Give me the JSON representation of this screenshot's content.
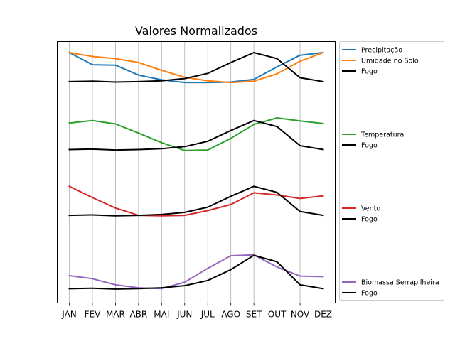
{
  "chart_data": {
    "type": "line",
    "title": "Valores Normalizados",
    "xlabel": "",
    "ylabel": "",
    "categories": [
      "JAN",
      "FEV",
      "MAR",
      "ABR",
      "MAI",
      "JUN",
      "JUL",
      "AGO",
      "SET",
      "OUT",
      "NOV",
      "DEZ"
    ],
    "grid": "vertical",
    "y_ticks_visible": false,
    "ylim": [
      0,
      1
    ],
    "panels": [
      {
        "ylim": [
          0,
          1
        ],
        "series": [
          {
            "name": "Precipitação",
            "color": "#1f77b4",
            "values": [
              1.0,
              0.72,
              0.71,
              0.48,
              0.37,
              0.31,
              0.31,
              0.32,
              0.38,
              0.67,
              0.94,
              1.0
            ]
          },
          {
            "name": "Umidade no Solo",
            "color": "#ff7f0e",
            "values": [
              1.0,
              0.91,
              0.86,
              0.77,
              0.59,
              0.43,
              0.35,
              0.31,
              0.34,
              0.51,
              0.8,
              1.0
            ]
          },
          {
            "name": "Fogo",
            "color": "#000000",
            "values": [
              0.33,
              0.34,
              0.32,
              0.33,
              0.35,
              0.4,
              0.52,
              0.77,
              1.0,
              0.86,
              0.42,
              0.33
            ]
          }
        ]
      },
      {
        "ylim": [
          0,
          1
        ],
        "series": [
          {
            "name": "Temperatura",
            "color": "#2ca02c",
            "values": [
              0.88,
              0.94,
              0.86,
              0.65,
              0.43,
              0.25,
              0.26,
              0.53,
              0.85,
              1.0,
              0.93,
              0.87
            ]
          },
          {
            "name": "Fogo",
            "color": "#000000",
            "values": [
              0.27,
              0.28,
              0.26,
              0.27,
              0.29,
              0.34,
              0.46,
              0.71,
              0.94,
              0.8,
              0.36,
              0.27
            ]
          }
        ]
      },
      {
        "ylim": [
          0,
          1
        ],
        "series": [
          {
            "name": "Vento",
            "color": "#d62728",
            "values": [
              0.93,
              0.67,
              0.43,
              0.26,
              0.25,
              0.26,
              0.37,
              0.51,
              0.78,
              0.73,
              0.65,
              0.71
            ]
          },
          {
            "name": "Fogo",
            "color": "#000000",
            "values": [
              0.26,
              0.27,
              0.25,
              0.26,
              0.28,
              0.33,
              0.45,
              0.7,
              0.93,
              0.79,
              0.35,
              0.26
            ]
          }
        ]
      },
      {
        "ylim": [
          0,
          1
        ],
        "series": [
          {
            "name": "Biomassa Serrapilheira",
            "color": "#9467bd",
            "values": [
              0.36,
              0.29,
              0.15,
              0.08,
              0.06,
              0.21,
              0.53,
              0.82,
              0.84,
              0.56,
              0.35,
              0.34
            ]
          },
          {
            "name": "Fogo",
            "color": "#000000",
            "values": [
              0.06,
              0.07,
              0.05,
              0.06,
              0.08,
              0.13,
              0.25,
              0.5,
              0.83,
              0.68,
              0.15,
              0.06
            ]
          }
        ]
      }
    ]
  }
}
